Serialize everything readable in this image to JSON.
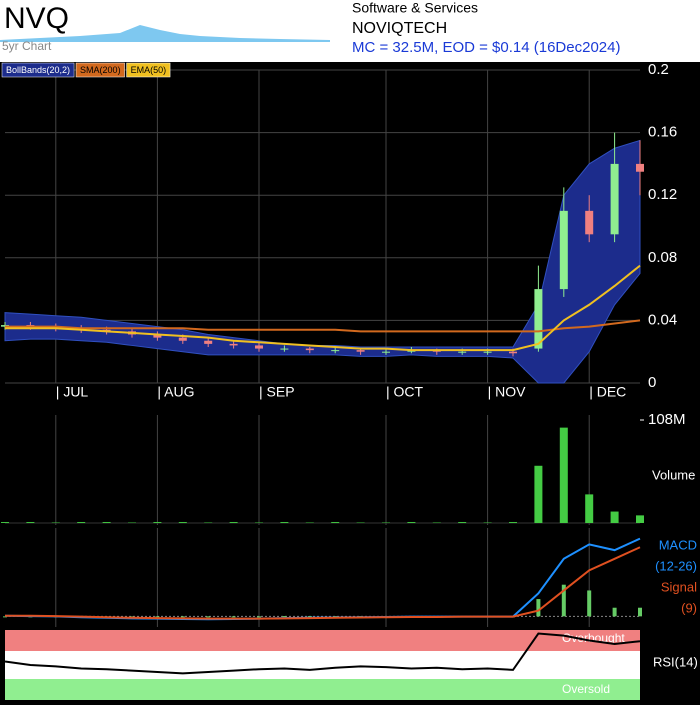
{
  "header": {
    "ticker": "NVQ",
    "subtitle": "5yr Chart",
    "sector": "Software & Services",
    "name": "NOVIQTECH",
    "summary": "MC = 32.5M, EOD = $0.14 (16Dec2024)"
  },
  "chart_data": [
    {
      "type": "candlestick",
      "categories": [
        null,
        null,
        "| JUL",
        null,
        null,
        null,
        "| AUG",
        null,
        null,
        null,
        "| SEP",
        null,
        null,
        null,
        null,
        "| OCT",
        null,
        null,
        null,
        "| NOV",
        null,
        null,
        null,
        "| DEC",
        null,
        null
      ],
      "open": [
        0.036,
        0.037,
        0.036,
        0.035,
        0.034,
        0.033,
        0.031,
        0.029,
        0.027,
        0.025,
        0.024,
        0.022,
        0.022,
        0.021,
        0.021,
        0.02,
        0.02,
        0.021,
        0.02,
        0.02,
        0.02,
        0.022,
        0.06,
        0.11,
        0.095,
        0.14
      ],
      "high": [
        0.039,
        0.039,
        0.038,
        0.037,
        0.036,
        0.035,
        0.033,
        0.031,
        0.029,
        0.027,
        0.026,
        0.024,
        0.023,
        0.023,
        0.022,
        0.022,
        0.023,
        0.022,
        0.022,
        0.022,
        0.022,
        0.075,
        0.125,
        0.12,
        0.16,
        0.155
      ],
      "low": [
        0.034,
        0.034,
        0.033,
        0.032,
        0.031,
        0.029,
        0.027,
        0.025,
        0.023,
        0.022,
        0.02,
        0.02,
        0.019,
        0.019,
        0.018,
        0.018,
        0.019,
        0.018,
        0.018,
        0.018,
        0.017,
        0.02,
        0.055,
        0.09,
        0.09,
        0.12
      ],
      "close": [
        0.037,
        0.036,
        0.035,
        0.034,
        0.033,
        0.031,
        0.029,
        0.027,
        0.025,
        0.024,
        0.022,
        0.022,
        0.021,
        0.021,
        0.02,
        0.02,
        0.021,
        0.02,
        0.02,
        0.02,
        0.019,
        0.06,
        0.11,
        0.095,
        0.14,
        0.135
      ],
      "up_color": "#90ee90",
      "down_color": "#f08080",
      "bands": {
        "name": "BollBands(20,2)",
        "color": "#1c2c8c",
        "upper": [
          0.045,
          0.044,
          0.043,
          0.042,
          0.04,
          0.038,
          0.036,
          0.034,
          0.031,
          0.029,
          0.027,
          0.025,
          0.024,
          0.024,
          0.023,
          0.023,
          0.023,
          0.023,
          0.023,
          0.023,
          0.023,
          0.05,
          0.12,
          0.14,
          0.15,
          0.155
        ],
        "lower": [
          0.027,
          0.028,
          0.028,
          0.027,
          0.026,
          0.024,
          0.022,
          0.02,
          0.018,
          0.018,
          0.018,
          0.018,
          0.018,
          0.018,
          0.017,
          0.017,
          0.018,
          0.017,
          0.017,
          0.017,
          0.016,
          0,
          0,
          0.02,
          0.05,
          0.07
        ]
      },
      "series": [
        {
          "name": "SMA(200)",
          "color": "#d2691e",
          "values": [
            0.036,
            0.036,
            0.036,
            0.035,
            0.035,
            0.035,
            0.035,
            0.035,
            0.034,
            0.034,
            0.034,
            0.034,
            0.034,
            0.034,
            0.033,
            0.033,
            0.033,
            0.033,
            0.033,
            0.033,
            0.033,
            0.033,
            0.035,
            0.036,
            0.038,
            0.04
          ]
        },
        {
          "name": "EMA(50)",
          "color": "#f0c020",
          "values": [
            0.035,
            0.035,
            0.035,
            0.034,
            0.033,
            0.032,
            0.031,
            0.03,
            0.029,
            0.027,
            0.026,
            0.025,
            0.024,
            0.023,
            0.022,
            0.022,
            0.021,
            0.021,
            0.021,
            0.021,
            0.021,
            0.025,
            0.04,
            0.05,
            0.062,
            0.075
          ]
        }
      ],
      "ylim": [
        0,
        0.2
      ],
      "yticks": [
        0,
        0.04,
        0.08,
        0.12,
        0.16,
        0.2
      ],
      "grid": true
    },
    {
      "type": "bar",
      "label": "Volume",
      "color": "#44cc44",
      "values": [
        1000000,
        1000000,
        500000,
        1000000,
        1000000,
        500000,
        1000000,
        1000000,
        500000,
        1000000,
        500000,
        1000000,
        500000,
        1000000,
        500000,
        500000,
        1000000,
        500000,
        1000000,
        500000,
        1000000,
        60000000,
        100000000,
        30000000,
        12000000,
        8000000
      ],
      "ylim": [
        0,
        108000000
      ],
      "yticks": [
        {
          "value": 108000000,
          "label": "108M"
        }
      ]
    },
    {
      "type": "line",
      "series": [
        {
          "name": "MACD",
          "params": "(12-26)",
          "color": "#1e90ff",
          "values": [
            0.0002,
            0.0001,
            0,
            -0.0003,
            -0.0005,
            -0.0007,
            -0.0008,
            -0.0009,
            -0.001,
            -0.0009,
            -0.0008,
            -0.0006,
            -0.0005,
            -0.0004,
            -0.0003,
            -0.0002,
            -0.0001,
            -0.0001,
            -0.0001,
            -0.0001,
            -0.0001,
            0.008,
            0.02,
            0.025,
            0.023,
            0.027
          ]
        },
        {
          "name": "Signal",
          "params": "(9)",
          "color": "#e05020",
          "values": [
            0.0002,
            0.0002,
            0.0001,
            -0.0001,
            -0.0003,
            -0.0005,
            -0.0006,
            -0.0007,
            -0.0008,
            -0.0008,
            -0.0008,
            -0.0007,
            -0.0006,
            -0.0005,
            -0.0004,
            -0.0003,
            -0.0002,
            -0.0002,
            -0.0001,
            -0.0001,
            -0.0001,
            0.002,
            0.009,
            0.016,
            0.02,
            0.024
          ]
        }
      ],
      "histogram": {
        "color": "#66cc66",
        "values": [
          0,
          -0.0001,
          -0.0001,
          -0.0002,
          -0.0002,
          -0.0002,
          -0.0002,
          -0.0002,
          -0.0002,
          -0.0001,
          0,
          0.0001,
          0.0001,
          0.0001,
          0.0001,
          0.0001,
          0.0001,
          0.0001,
          0,
          0,
          0,
          0.006,
          0.011,
          0.009,
          0.003,
          0.003
        ]
      },
      "ylim": [
        -0.003,
        0.03
      ]
    },
    {
      "type": "line",
      "series": [
        {
          "name": "RSI(14)",
          "color": "#000000",
          "values": [
            55,
            50,
            48,
            45,
            44,
            42,
            40,
            38,
            40,
            42,
            44,
            45,
            43,
            46,
            48,
            47,
            45,
            46,
            44,
            45,
            43,
            95,
            92,
            85,
            80,
            84
          ]
        }
      ],
      "overbought": 70,
      "overbought_label": "Overbought",
      "overbought_color": "#f08080",
      "oversold": 30,
      "oversold_label": "Oversold",
      "oversold_color": "#90ee90",
      "ylim": [
        0,
        100
      ]
    }
  ]
}
